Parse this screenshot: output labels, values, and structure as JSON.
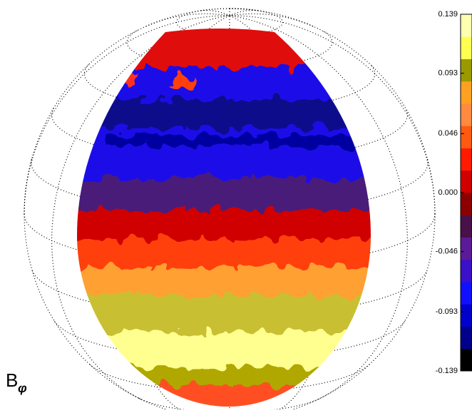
{
  "chart_data": {
    "type": "contour",
    "label": "B",
    "label_subscript": "φ",
    "ylim": [
      -0.139,
      0.139
    ],
    "yticks": [
      -0.139,
      -0.093,
      -0.046,
      {
        "value": 0,
        "label": "0.000"
      },
      0.046,
      0.093,
      0.139
    ],
    "colorscale": [
      "#000000",
      "#00008b",
      "#0000cd",
      "#1010ff",
      "#3a10c8",
      "#5a1a9a",
      "#4a1048",
      "#8b0000",
      "#d00000",
      "#ff1a00",
      "#ff5a10",
      "#ff8a40",
      "#ffa020",
      "#9a9a00",
      "#ffff50",
      "#ffffb0"
    ]
  }
}
